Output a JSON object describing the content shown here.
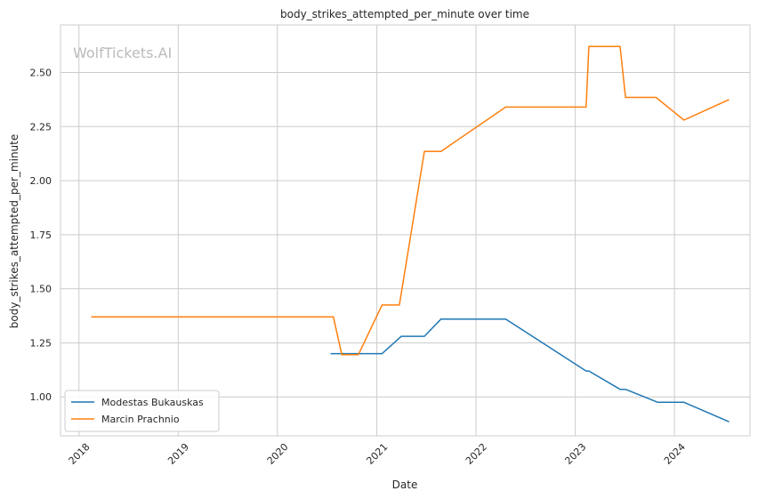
{
  "chart_data": {
    "type": "line",
    "title": "body_strikes_attempted_per_minute over time",
    "xlabel": "Date",
    "ylabel": "body_strikes_attempted_per_minute",
    "watermark": "WolfTickets.AI",
    "x_ticks": [
      "2018",
      "2019",
      "2020",
      "2021",
      "2022",
      "2023",
      "2024"
    ],
    "y_ticks": [
      "1.00",
      "1.25",
      "1.50",
      "1.75",
      "2.00",
      "2.25",
      "2.50"
    ],
    "x_range": [
      "2017-10-25",
      "2024-10-05"
    ],
    "y_range": [
      0.82,
      2.72
    ],
    "grid": true,
    "legend_position": "lower-left",
    "series": [
      {
        "name": "Modestas Bukauskas",
        "color": "#1f77b4",
        "points": [
          [
            "2020-07-15",
            1.2
          ],
          [
            "2021-01-20",
            1.2
          ],
          [
            "2021-04-01",
            1.28
          ],
          [
            "2021-06-25",
            1.28
          ],
          [
            "2021-08-25",
            1.36
          ],
          [
            "2022-04-20",
            1.36
          ],
          [
            "2023-02-10",
            1.12
          ],
          [
            "2023-02-20",
            1.12
          ],
          [
            "2023-06-15",
            1.035
          ],
          [
            "2023-07-05",
            1.035
          ],
          [
            "2023-11-01",
            0.975
          ],
          [
            "2024-02-05",
            0.975
          ],
          [
            "2024-07-20",
            0.885
          ]
        ]
      },
      {
        "name": "Marcin Prachnio",
        "color": "#ff7f0e",
        "points": [
          [
            "2018-02-15",
            1.37
          ],
          [
            "2020-07-25",
            1.37
          ],
          [
            "2020-08-25",
            1.195
          ],
          [
            "2020-10-25",
            1.195
          ],
          [
            "2021-01-20",
            1.425
          ],
          [
            "2021-03-25",
            1.425
          ],
          [
            "2021-06-25",
            2.135
          ],
          [
            "2021-08-25",
            2.135
          ],
          [
            "2022-04-20",
            2.34
          ],
          [
            "2023-02-10",
            2.34
          ],
          [
            "2023-02-20",
            2.62
          ],
          [
            "2023-06-15",
            2.62
          ],
          [
            "2023-07-05",
            2.385
          ],
          [
            "2023-10-25",
            2.385
          ],
          [
            "2024-02-05",
            2.28
          ],
          [
            "2024-07-20",
            2.375
          ]
        ]
      }
    ]
  }
}
